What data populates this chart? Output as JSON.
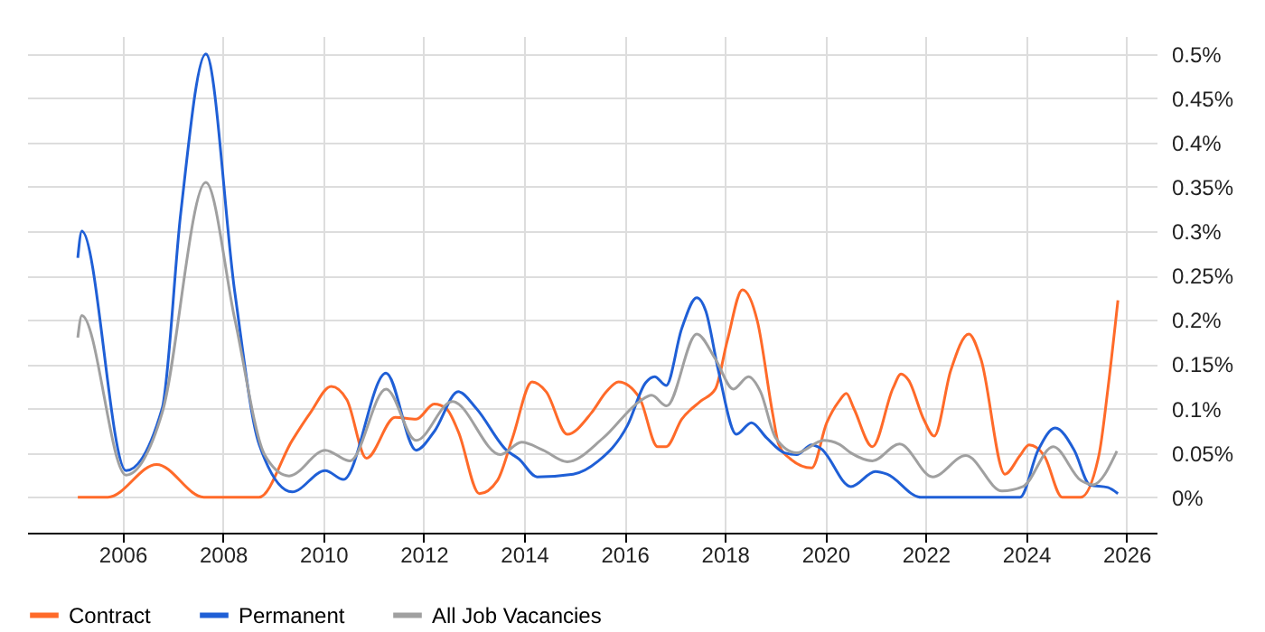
{
  "chart_data": {
    "type": "line",
    "xlim": [
      2004.1,
      2026.6
    ],
    "xticks": [
      2006,
      2008,
      2010,
      2012,
      2014,
      2016,
      2018,
      2020,
      2022,
      2024,
      2026
    ],
    "ylim": [
      -0.04,
      0.52
    ],
    "yticks": [
      {
        "value": 0,
        "label": "0%"
      },
      {
        "value": 0.05,
        "label": "0.05%"
      },
      {
        "value": 0.1,
        "label": "0.1%"
      },
      {
        "value": 0.15,
        "label": "0.15%"
      },
      {
        "value": 0.2,
        "label": "0.2%"
      },
      {
        "value": 0.25,
        "label": "0.25%"
      },
      {
        "value": 0.3,
        "label": "0.3%"
      },
      {
        "value": 0.35,
        "label": "0.35%"
      },
      {
        "value": 0.4,
        "label": "0.4%"
      },
      {
        "value": 0.45,
        "label": "0.45%"
      },
      {
        "value": 0.5,
        "label": "0.5%"
      }
    ],
    "grid": true,
    "legend": "bottom",
    "series": [
      {
        "name": "Contract",
        "color": "#ff6a29",
        "x": [
          2005.11,
          2005.71,
          2006.68,
          2007.62,
          2008.72,
          2009.38,
          2009.74,
          2010.16,
          2010.47,
          2010.86,
          2011.43,
          2011.85,
          2012.21,
          2012.45,
          2012.69,
          2013.11,
          2013.47,
          2013.77,
          2014.16,
          2014.44,
          2014.86,
          2015.34,
          2015.64,
          2015.88,
          2016.3,
          2016.66,
          2016.83,
          2017.14,
          2017.51,
          2017.81,
          2018.05,
          2018.35,
          2018.65,
          2018.95,
          2019.07,
          2019.31,
          2019.73,
          2020.03,
          2020.27,
          2020.42,
          2020.57,
          2020.94,
          2021.35,
          2021.51,
          2021.66,
          2021.96,
          2022.17,
          2022.5,
          2022.86,
          2023.1,
          2023.58,
          2023.88,
          2024.06,
          2024.36,
          2024.72,
          2025.09,
          2025.45,
          2025.63,
          2025.83
        ],
        "values": [
          0,
          0,
          0.037,
          0,
          0,
          0.064,
          0.095,
          0.125,
          0.11,
          0.044,
          0.09,
          0.088,
          0.105,
          0.1,
          0.074,
          0.004,
          0.019,
          0.067,
          0.13,
          0.119,
          0.071,
          0.095,
          0.119,
          0.13,
          0.112,
          0.057,
          0.057,
          0.088,
          0.108,
          0.122,
          0.177,
          0.234,
          0.198,
          0.095,
          0.06,
          0.043,
          0.033,
          0.084,
          0.108,
          0.117,
          0.1,
          0.057,
          0.123,
          0.139,
          0.132,
          0.088,
          0.069,
          0.143,
          0.184,
          0.156,
          0.026,
          0.047,
          0.059,
          0.047,
          0,
          0,
          0.047,
          0.122,
          0.222
        ]
      },
      {
        "name": "Permanent",
        "color": "#1f5fd6",
        "x": [
          2005.11,
          2005.19,
          2006.07,
          2006.79,
          2007.16,
          2007.66,
          2008.24,
          2008.72,
          2009.38,
          2010.04,
          2010.4,
          2011.25,
          2011.85,
          2012.21,
          2012.69,
          2013.05,
          2013.65,
          2013.9,
          2014.26,
          2014.98,
          2015.46,
          2016.06,
          2016.42,
          2016.6,
          2016.83,
          2017.14,
          2017.44,
          2017.62,
          2017.87,
          2018.23,
          2018.53,
          2018.83,
          2019.19,
          2019.43,
          2019.73,
          2019.91,
          2020.51,
          2021.0,
          2021.23,
          2021.9,
          2023.88,
          2024.24,
          2024.58,
          2024.96,
          2025.27,
          2025.63,
          2025.83
        ],
        "values": [
          0.27,
          0.3,
          0.03,
          0.1,
          0.32,
          0.5,
          0.23,
          0.06,
          0.006,
          0.03,
          0.02,
          0.14,
          0.053,
          0.074,
          0.119,
          0.1,
          0.053,
          0.043,
          0.023,
          0.026,
          0.04,
          0.081,
          0.129,
          0.136,
          0.126,
          0.19,
          0.225,
          0.21,
          0.143,
          0.071,
          0.084,
          0.067,
          0.05,
          0.048,
          0.059,
          0.055,
          0.012,
          0.029,
          0.026,
          0,
          0,
          0.053,
          0.078,
          0.053,
          0.014,
          0.011,
          0.004
        ]
      },
      {
        "name": "All Job Vacancies",
        "color": "#a0a0a0",
        "x": [
          2005.11,
          2005.19,
          2006.07,
          2006.79,
          2007.66,
          2008.24,
          2008.84,
          2009.32,
          2010.04,
          2010.53,
          2011.25,
          2011.85,
          2012.57,
          2013.53,
          2013.95,
          2014.38,
          2014.86,
          2015.58,
          2016.3,
          2016.54,
          2016.84,
          2017.44,
          2017.81,
          2018.17,
          2018.47,
          2018.71,
          2019.01,
          2019.43,
          2019.97,
          2020.27,
          2020.51,
          2020.94,
          2021.48,
          2022.14,
          2022.8,
          2023.52,
          2023.94,
          2024.54,
          2025.09,
          2025.33,
          2025.81
        ],
        "values": [
          0.18,
          0.205,
          0.025,
          0.095,
          0.355,
          0.2,
          0.047,
          0.024,
          0.053,
          0.041,
          0.122,
          0.064,
          0.108,
          0.048,
          0.062,
          0.053,
          0.04,
          0.067,
          0.108,
          0.115,
          0.103,
          0.184,
          0.156,
          0.122,
          0.136,
          0.119,
          0.067,
          0.05,
          0.064,
          0.06,
          0.05,
          0.041,
          0.06,
          0.023,
          0.047,
          0.007,
          0.012,
          0.057,
          0.019,
          0.014,
          0.052
        ]
      }
    ]
  }
}
